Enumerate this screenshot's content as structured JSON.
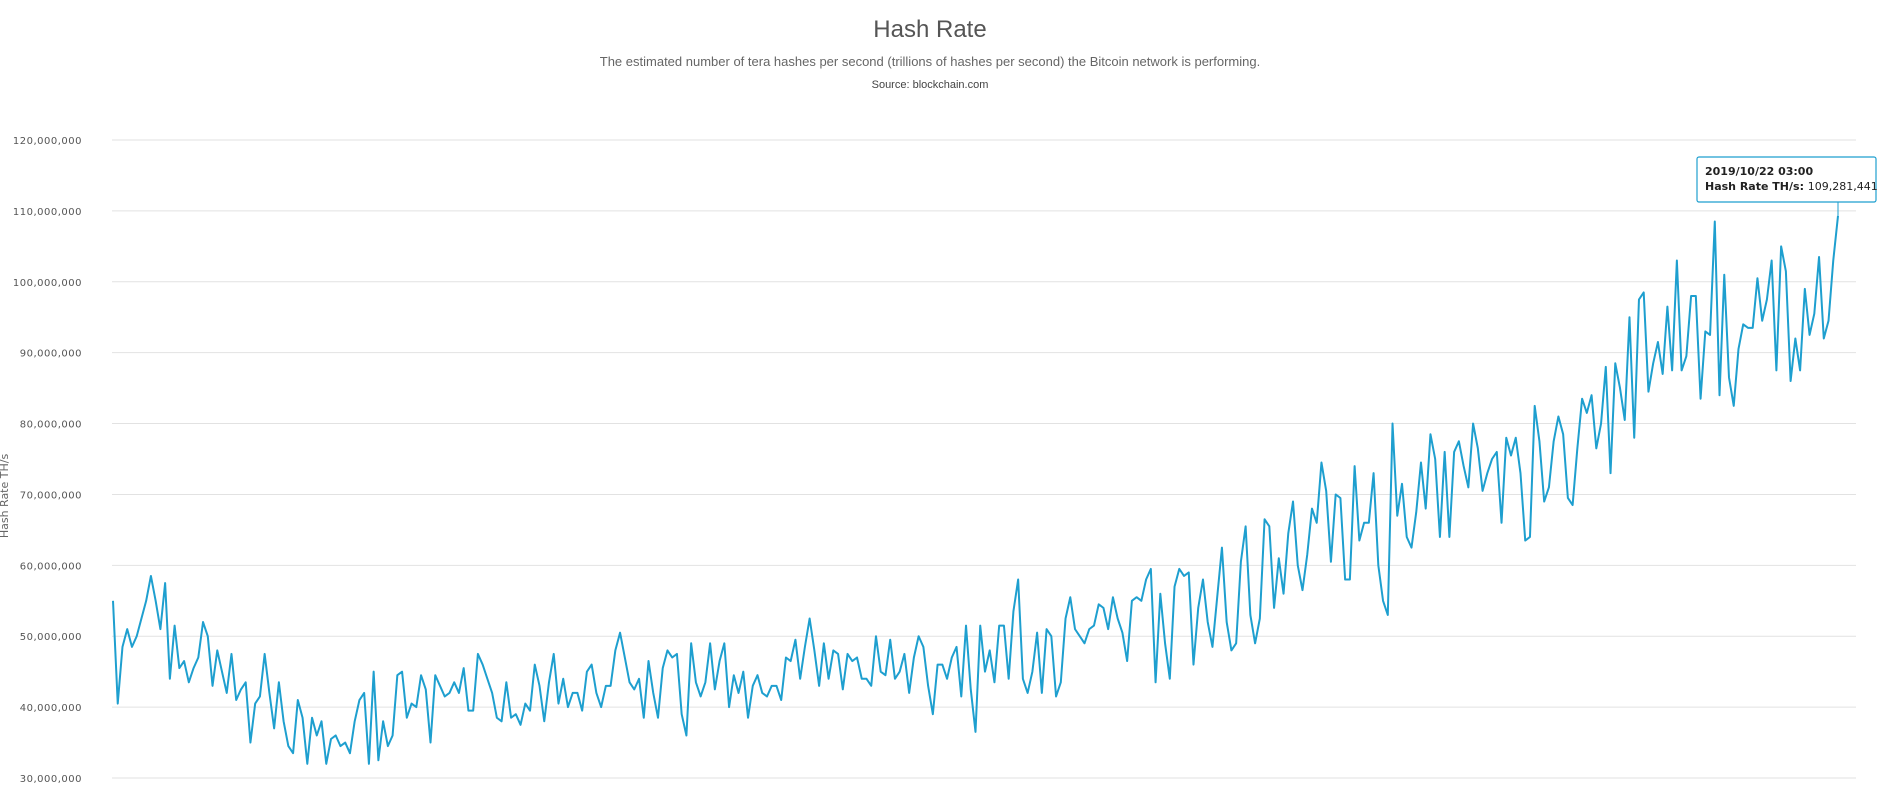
{
  "chart_data": {
    "type": "line",
    "title": "Hash Rate",
    "subtitle": "The estimated number of tera hashes per second (trillions of hashes per second) the Bitcoin network is performing.",
    "source": "Source: blockchain.com",
    "ylabel": "Hash Rate TH/s",
    "xlabel": "",
    "ylim": [
      28000000,
      120000000
    ],
    "yticks": [
      30000000,
      40000000,
      50000000,
      60000000,
      70000000,
      80000000,
      90000000,
      100000000,
      110000000,
      120000000
    ],
    "ytick_labels": [
      "30,000,000",
      "40,000,000",
      "50,000,000",
      "60,000,000",
      "70,000,000",
      "80,000,000",
      "90,000,000",
      "100,000,000",
      "110,000,000",
      "120,000,000"
    ],
    "grid": true,
    "series": [
      {
        "color": "#1e9fcf",
        "values": [
          55.0,
          40.5,
          48.5,
          51.0,
          48.5,
          50.0,
          52.5,
          55.0,
          58.5,
          55.0,
          51.0,
          57.5,
          44.0,
          51.5,
          45.5,
          46.5,
          43.5,
          45.5,
          47.0,
          52.0,
          50.0,
          43.0,
          48.0,
          45.0,
          42.0,
          47.5,
          41.0,
          42.5,
          43.5,
          35.0,
          40.5,
          41.5,
          47.5,
          42.0,
          37.0,
          43.5,
          38.0,
          34.5,
          33.5,
          41.0,
          38.5,
          32.0,
          38.5,
          36.0,
          38.0,
          32.0,
          35.5,
          36.0,
          34.5,
          35.0,
          33.5,
          38.0,
          41.0,
          42.0,
          32.0,
          45.0,
          32.5,
          38.0,
          34.5,
          36.0,
          44.5,
          45.0,
          38.5,
          40.5,
          40.0,
          44.5,
          42.5,
          35.0,
          44.5,
          43.0,
          41.5,
          42.0,
          43.5,
          42.0,
          45.5,
          39.5,
          39.5,
          47.5,
          46.0,
          44.0,
          42.0,
          38.5,
          38.0,
          43.5,
          38.5,
          39.0,
          37.5,
          40.5,
          39.5,
          46.0,
          43.0,
          38.0,
          43.5,
          47.5,
          40.5,
          44.0,
          40.0,
          42.0,
          42.0,
          39.5,
          45.0,
          46.0,
          42.0,
          40.0,
          43.0,
          43.0,
          48.0,
          50.5,
          47.0,
          43.5,
          42.5,
          44.0,
          38.5,
          46.5,
          42.0,
          38.5,
          45.5,
          48.0,
          47.0,
          47.5,
          39.0,
          36.0,
          49.0,
          43.5,
          41.5,
          43.5,
          49.0,
          42.5,
          46.5,
          49.0,
          40.0,
          44.5,
          42.0,
          45.0,
          38.5,
          43.0,
          44.5,
          42.0,
          41.5,
          43.0,
          43.0,
          41.0,
          47.0,
          46.5,
          49.5,
          44.0,
          48.5,
          52.5,
          48.0,
          43.0,
          49.0,
          44.0,
          48.0,
          47.5,
          42.5,
          47.5,
          46.5,
          47.0,
          44.0,
          44.0,
          43.0,
          50.0,
          45.0,
          44.5,
          49.5,
          44.0,
          45.0,
          47.5,
          42.0,
          47.0,
          50.0,
          48.5,
          43.0,
          39.0,
          46.0,
          46.0,
          44.0,
          47.0,
          48.5,
          41.5,
          51.5,
          42.5,
          36.5,
          51.5,
          45.0,
          48.0,
          43.5,
          51.5,
          51.5,
          44.0,
          53.5,
          58.0,
          44.0,
          42.0,
          45.0,
          50.5,
          42.0,
          51.0,
          50.0,
          41.5,
          43.5,
          52.5,
          55.5,
          51.0,
          50.0,
          49.0,
          51.0,
          51.5,
          54.5,
          54.0,
          51.0,
          55.5,
          52.5,
          50.5,
          46.5,
          55.0,
          55.5,
          55.0,
          58.0,
          59.5,
          43.5,
          56.0,
          49.0,
          44.0,
          57.0,
          59.5,
          58.5,
          59.0,
          46.0,
          54.0,
          58.0,
          52.0,
          48.5,
          55.5,
          62.5,
          52.0,
          48.0,
          49.0,
          60.5,
          65.5,
          53.0,
          49.0,
          52.5,
          66.5,
          65.5,
          54.0,
          61.0,
          56.0,
          64.5,
          69.0,
          60.0,
          56.5,
          61.5,
          68.0,
          66.0,
          74.5,
          70.5,
          60.5,
          70.0,
          69.5,
          58.0,
          58.0,
          74.0,
          63.5,
          66.0,
          66.0,
          73.0,
          60.0,
          55.0,
          53.0,
          80.0,
          67.0,
          71.5,
          64.0,
          62.5,
          67.5,
          74.5,
          68.0,
          78.5,
          75.0,
          64.0,
          76.0,
          64.0,
          76.0,
          77.5,
          74.0,
          71.0,
          80.0,
          76.5,
          70.5,
          73.0,
          75.0,
          76.0,
          66.0,
          78.0,
          75.5,
          78.0,
          73.0,
          63.5,
          64.0,
          82.5,
          77.5,
          69.0,
          71.0,
          77.5,
          81.0,
          78.5,
          69.5,
          68.5,
          76.5,
          83.5,
          81.5,
          84.0,
          76.5,
          80.0,
          88.0,
          73.0,
          88.5,
          85.0,
          80.5,
          95.0,
          78.0,
          97.5,
          98.5,
          84.5,
          88.5,
          91.5,
          87.0,
          96.5,
          87.5,
          103.0,
          87.5,
          89.5,
          98.0,
          98.0,
          83.5,
          93.0,
          92.5,
          108.5,
          84.0,
          101.0,
          86.5,
          82.5,
          90.5,
          94.0,
          93.5,
          93.5,
          100.5,
          94.5,
          97.5,
          103.0,
          87.5,
          105.0,
          101.5,
          86.0,
          92.0,
          87.5,
          99.0,
          92.5,
          95.5,
          103.5,
          92.0,
          94.5,
          103.0,
          109.3
        ]
      }
    ],
    "tooltip": {
      "date": "2019/10/22 03:00",
      "label": "Hash Rate TH/s",
      "value": "109,281,441"
    }
  }
}
